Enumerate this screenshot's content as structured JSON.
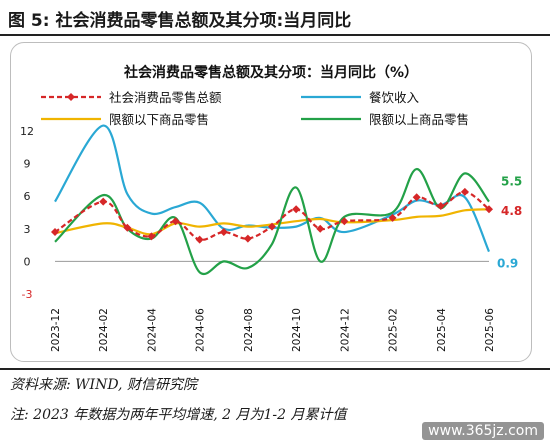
{
  "figure_title": "图 5: 社会消费品零售总额及其分项:当月同比",
  "source": "资料来源: WIND, 财信研究院",
  "note": "注: 2023 年数据为两年平均增速, 2 月为1-2 月累计值",
  "watermark": "www.365jz.com",
  "chart_data": {
    "type": "line",
    "title": "社会消费品零售总额及其分项：当月同比（%）",
    "ylim": [
      -3,
      12
    ],
    "yticks": [
      -3,
      0,
      3,
      6,
      9,
      12
    ],
    "x": [
      "2023-12",
      "2024-01",
      "2024-02",
      "2024-03",
      "2024-04",
      "2024-05",
      "2024-06",
      "2024-07",
      "2024-08",
      "2024-09",
      "2024-10",
      "2024-11",
      "2024-12",
      "2025-01",
      "2025-02",
      "2025-03",
      "2025-04",
      "2025-05",
      "2025-06"
    ],
    "xtick_labels": [
      "2023-12",
      "2024-02",
      "2024-04",
      "2024-06",
      "2024-08",
      "2024-10",
      "2024-12",
      "2025-02",
      "2025-04",
      "2025-06"
    ],
    "legend_position": "top",
    "grid": false,
    "series": [
      {
        "name": "社会消费品零售总额",
        "color": "#d62728",
        "dash": true,
        "marker": "diamond",
        "values": [
          2.7,
          null,
          5.5,
          3.1,
          2.3,
          3.7,
          2.0,
          2.7,
          2.1,
          3.2,
          4.8,
          3.0,
          3.7,
          null,
          4.0,
          5.9,
          5.1,
          6.4,
          4.8
        ]
      },
      {
        "name": "餐饮收入",
        "color": "#2aa8d4",
        "values": [
          5.5,
          null,
          12.5,
          6.2,
          4.4,
          5.0,
          5.4,
          3.0,
          3.3,
          3.1,
          3.2,
          4.0,
          2.7,
          null,
          4.3,
          5.6,
          5.2,
          5.9,
          0.9
        ]
      },
      {
        "name": "限额以下商品零售",
        "color": "#f0b400",
        "values": [
          2.6,
          null,
          3.5,
          3.1,
          2.5,
          3.5,
          3.2,
          3.5,
          3.2,
          3.4,
          3.7,
          3.9,
          3.6,
          null,
          3.8,
          4.1,
          4.2,
          4.7,
          4.8
        ]
      },
      {
        "name": "限额以上商品零售",
        "color": "#23a148",
        "values": [
          1.8,
          null,
          6.1,
          3.0,
          2.1,
          4.0,
          -1.0,
          0.0,
          -0.6,
          1.6,
          6.8,
          0.0,
          4.1,
          null,
          4.5,
          8.5,
          4.9,
          8.1,
          5.5
        ]
      }
    ],
    "end_labels": [
      {
        "series": "限额以上商品零售",
        "text": "5.5",
        "color": "#23a148"
      },
      {
        "series": "社会消费品零售总额",
        "text": "4.8",
        "color": "#d62728"
      },
      {
        "series": "餐饮收入",
        "text": "0.9",
        "color": "#2aa8d4"
      }
    ],
    "zero_label_color": "#222222",
    "negative_label_color": "#d62728"
  }
}
